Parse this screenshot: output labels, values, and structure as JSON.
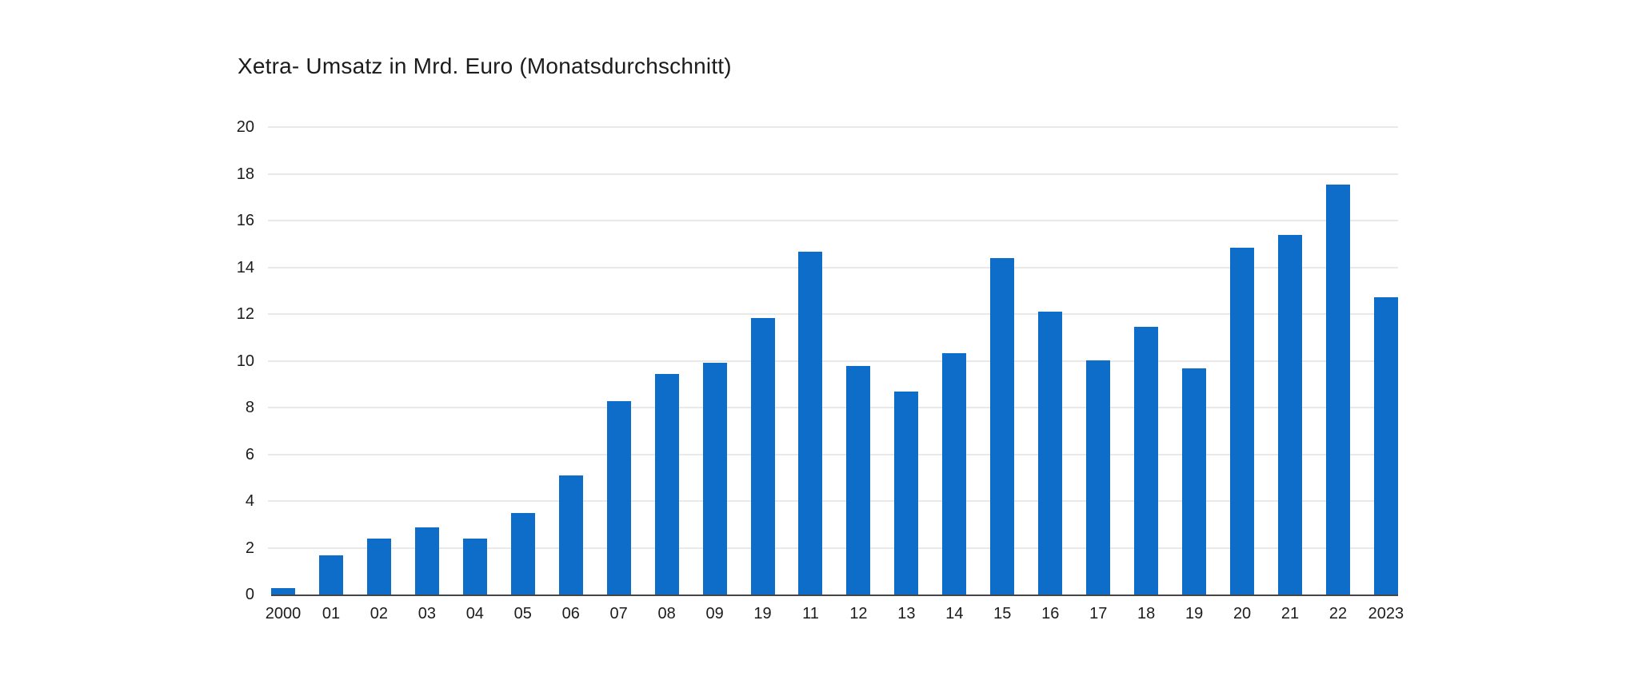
{
  "chart_data": {
    "type": "bar",
    "title": "Xetra- Umsatz in Mrd. Euro (Monatsdurchschnitt)",
    "categories": [
      "2000",
      "01",
      "02",
      "03",
      "04",
      "05",
      "06",
      "07",
      "08",
      "09",
      "19",
      "11",
      "12",
      "13",
      "14",
      "15",
      "16",
      "17",
      "18",
      "19",
      "20",
      "21",
      "22",
      "2023"
    ],
    "values": [
      0.27,
      1.68,
      2.4,
      2.88,
      2.4,
      3.49,
      5.1,
      8.29,
      9.42,
      9.93,
      11.82,
      14.66,
      9.77,
      8.7,
      10.31,
      14.38,
      12.09,
      10.03,
      11.47,
      9.69,
      14.83,
      15.38,
      17.53,
      12.71
    ],
    "xlabel": "",
    "ylabel": "",
    "ylim": [
      0,
      20
    ],
    "yticks": [
      0,
      2,
      4,
      6,
      8,
      10,
      12,
      14,
      16,
      18,
      20
    ],
    "grid": "horizontal-only",
    "legend": "none",
    "bar_color": "#0e6dc8",
    "axis_line_color": "#454545",
    "gridline_color": "#e9e9e9",
    "text_color": "#1c1c1c",
    "background_color": "#ffffff"
  }
}
